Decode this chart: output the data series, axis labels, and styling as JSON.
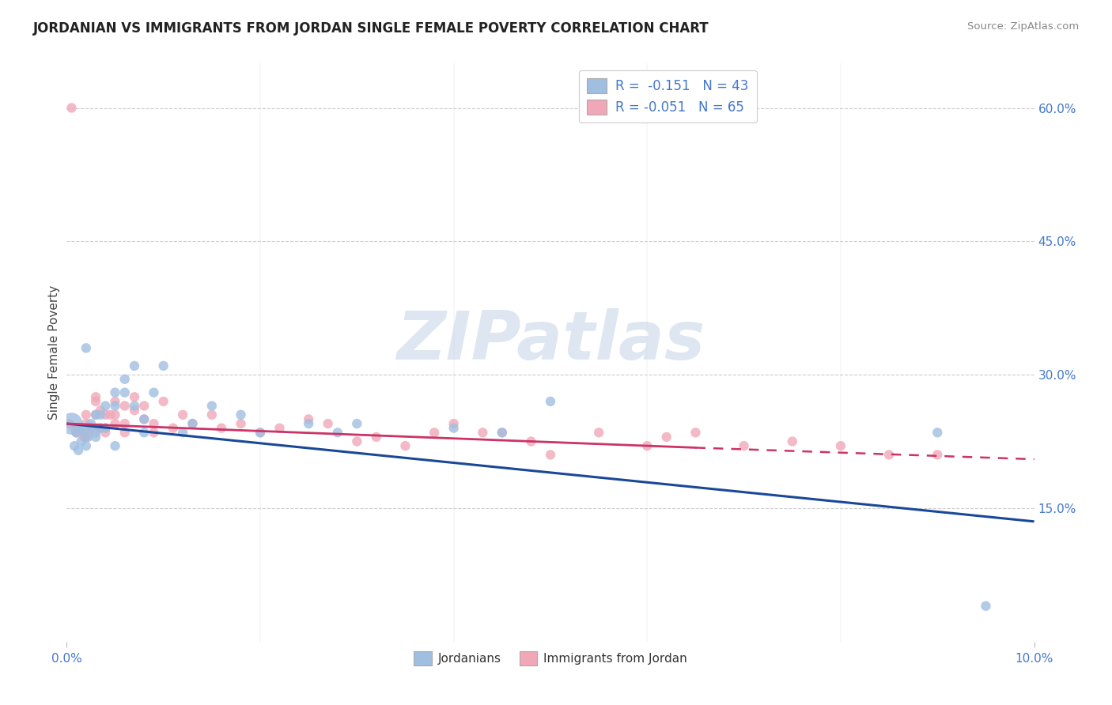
{
  "title": "JORDANIAN VS IMMIGRANTS FROM JORDAN SINGLE FEMALE POVERTY CORRELATION CHART",
  "source": "Source: ZipAtlas.com",
  "ylabel": "Single Female Poverty",
  "xlim": [
    0.0,
    0.1
  ],
  "ylim": [
    0.0,
    0.65
  ],
  "ytick_values_right": [
    0.15,
    0.3,
    0.45,
    0.6
  ],
  "background_color": "#ffffff",
  "grid_color": "#cccccc",
  "title_color": "#222222",
  "watermark": "ZIPatlas",
  "watermark_color": "#c8d8e8",
  "legend_R1": "-0.151",
  "legend_N1": "43",
  "legend_R2": "-0.051",
  "legend_N2": "65",
  "blue_color": "#a0bfe0",
  "pink_color": "#f0a8b8",
  "blue_line_color": "#1a4899",
  "pink_line_color": "#cc3366",
  "label_color": "#4477cc",
  "jordanians_label": "Jordanians",
  "immigrants_label": "Immigrants from Jordan",
  "jordanians_x": [
    0.0005,
    0.0008,
    0.001,
    0.0012,
    0.0015,
    0.0015,
    0.0018,
    0.002,
    0.002,
    0.0022,
    0.0025,
    0.0025,
    0.003,
    0.003,
    0.003,
    0.0035,
    0.0035,
    0.004,
    0.004,
    0.005,
    0.005,
    0.005,
    0.006,
    0.006,
    0.007,
    0.007,
    0.008,
    0.008,
    0.009,
    0.01,
    0.012,
    0.013,
    0.015,
    0.018,
    0.02,
    0.025,
    0.028,
    0.03,
    0.04,
    0.045,
    0.05,
    0.09,
    0.095
  ],
  "jordanians_y": [
    0.245,
    0.22,
    0.235,
    0.215,
    0.24,
    0.225,
    0.235,
    0.33,
    0.22,
    0.23,
    0.245,
    0.24,
    0.255,
    0.23,
    0.235,
    0.255,
    0.24,
    0.265,
    0.24,
    0.28,
    0.265,
    0.22,
    0.295,
    0.28,
    0.31,
    0.265,
    0.25,
    0.235,
    0.28,
    0.31,
    0.235,
    0.245,
    0.265,
    0.255,
    0.235,
    0.245,
    0.235,
    0.245,
    0.24,
    0.235,
    0.27,
    0.235,
    0.04
  ],
  "jordanians_size": [
    400,
    80,
    80,
    80,
    80,
    80,
    80,
    80,
    80,
    80,
    80,
    80,
    80,
    80,
    80,
    80,
    80,
    80,
    80,
    80,
    80,
    80,
    80,
    80,
    80,
    80,
    80,
    80,
    80,
    80,
    80,
    80,
    80,
    80,
    80,
    80,
    80,
    80,
    80,
    80,
    80,
    80,
    80
  ],
  "immigrants_x": [
    0.0003,
    0.0005,
    0.0008,
    0.001,
    0.001,
    0.0012,
    0.0015,
    0.0015,
    0.0018,
    0.002,
    0.002,
    0.002,
    0.0022,
    0.0025,
    0.003,
    0.003,
    0.003,
    0.0032,
    0.0035,
    0.0035,
    0.004,
    0.004,
    0.004,
    0.0045,
    0.005,
    0.005,
    0.005,
    0.006,
    0.006,
    0.006,
    0.007,
    0.007,
    0.008,
    0.008,
    0.009,
    0.009,
    0.01,
    0.011,
    0.012,
    0.013,
    0.015,
    0.016,
    0.018,
    0.02,
    0.022,
    0.025,
    0.027,
    0.03,
    0.032,
    0.035,
    0.038,
    0.04,
    0.043,
    0.045,
    0.048,
    0.05,
    0.055,
    0.06,
    0.062,
    0.065,
    0.07,
    0.075,
    0.08,
    0.085,
    0.09
  ],
  "immigrants_y": [
    0.245,
    0.6,
    0.24,
    0.235,
    0.235,
    0.24,
    0.235,
    0.235,
    0.23,
    0.255,
    0.245,
    0.23,
    0.235,
    0.24,
    0.275,
    0.27,
    0.255,
    0.24,
    0.26,
    0.24,
    0.255,
    0.24,
    0.235,
    0.255,
    0.27,
    0.255,
    0.245,
    0.265,
    0.235,
    0.245,
    0.275,
    0.26,
    0.265,
    0.25,
    0.245,
    0.235,
    0.27,
    0.24,
    0.255,
    0.245,
    0.255,
    0.24,
    0.245,
    0.235,
    0.24,
    0.25,
    0.245,
    0.225,
    0.23,
    0.22,
    0.235,
    0.245,
    0.235,
    0.235,
    0.225,
    0.21,
    0.235,
    0.22,
    0.23,
    0.235,
    0.22,
    0.225,
    0.22,
    0.21,
    0.21
  ],
  "immigrants_size": [
    80,
    80,
    80,
    80,
    80,
    80,
    80,
    80,
    80,
    80,
    80,
    80,
    80,
    80,
    80,
    80,
    80,
    80,
    80,
    80,
    80,
    80,
    80,
    80,
    80,
    80,
    80,
    80,
    80,
    80,
    80,
    80,
    80,
    80,
    80,
    80,
    80,
    80,
    80,
    80,
    80,
    80,
    80,
    80,
    80,
    80,
    80,
    80,
    80,
    80,
    80,
    80,
    80,
    80,
    80,
    80,
    80,
    80,
    80,
    80,
    80,
    80,
    80,
    80,
    80
  ]
}
